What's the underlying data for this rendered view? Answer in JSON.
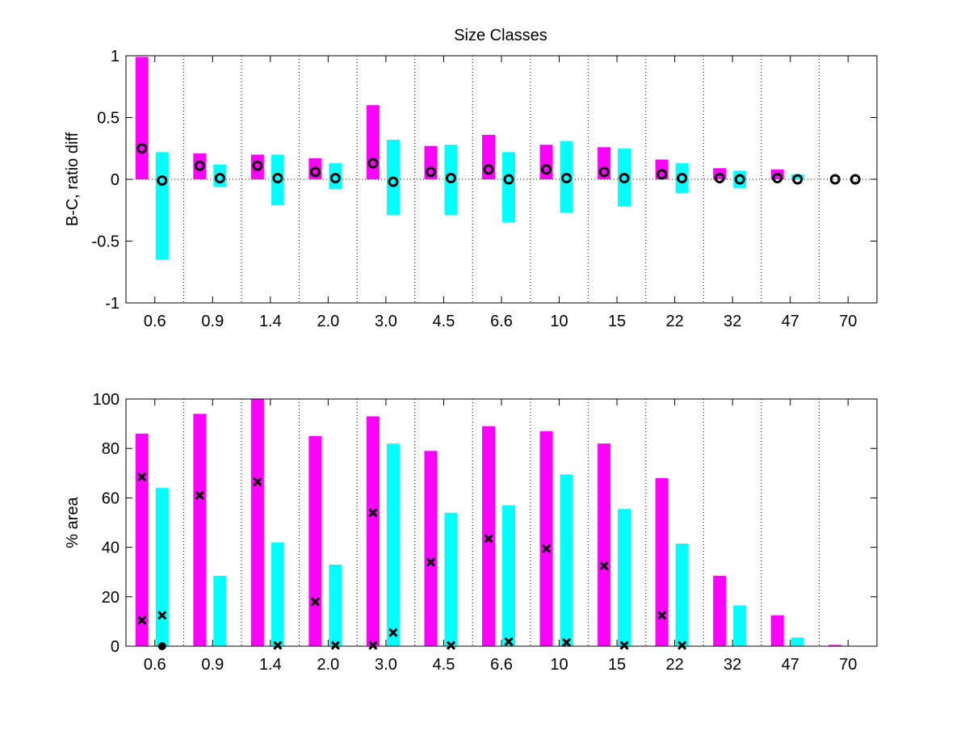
{
  "chart_data": [
    {
      "type": "bar",
      "title": "Size Classes",
      "xlabel": "",
      "ylabel": "B-C, ratio diff",
      "ylim": [
        -1,
        1
      ],
      "yticks": [
        "-1",
        "-0.5",
        "0",
        "0.5",
        "1"
      ],
      "ytick_values": [
        -1,
        -0.5,
        0,
        0.5,
        1
      ],
      "categories": [
        "0.6",
        "0.9",
        "1.4",
        "2.0",
        "3.0",
        "4.5",
        "6.6",
        "10",
        "15",
        "22",
        "32",
        "47",
        "70"
      ],
      "series": [
        {
          "name": "magenta range",
          "color": "#ff00ff",
          "low": [
            0,
            0,
            0,
            0,
            0,
            0,
            0,
            0,
            0,
            0,
            0,
            0,
            0
          ],
          "high": [
            0.99,
            0.21,
            0.2,
            0.17,
            0.6,
            0.27,
            0.36,
            0.28,
            0.26,
            0.16,
            0.09,
            0.08,
            0.0
          ]
        },
        {
          "name": "cyan range",
          "color": "#00ffff",
          "low": [
            -0.65,
            -0.06,
            -0.21,
            -0.08,
            -0.29,
            -0.29,
            -0.35,
            -0.27,
            -0.22,
            -0.11,
            -0.07,
            0.0,
            0.0
          ],
          "high": [
            0.22,
            0.12,
            0.2,
            0.13,
            0.32,
            0.28,
            0.22,
            0.31,
            0.25,
            0.13,
            0.07,
            0.04,
            0.0
          ]
        },
        {
          "name": "magenta mean",
          "marker": "circle",
          "values": [
            0.25,
            0.11,
            0.11,
            0.06,
            0.13,
            0.06,
            0.08,
            0.08,
            0.06,
            0.04,
            0.01,
            0.01,
            0.0
          ]
        },
        {
          "name": "cyan mean",
          "marker": "circle",
          "values": [
            -0.01,
            0.01,
            0.01,
            0.01,
            -0.02,
            0.01,
            0.0,
            0.01,
            0.01,
            0.01,
            0.0,
            0.0,
            0.0
          ]
        }
      ],
      "grid": "dotted vertical separators and zero line"
    },
    {
      "type": "bar",
      "title": "",
      "xlabel": "",
      "ylabel": "% area",
      "ylim": [
        0,
        100
      ],
      "yticks": [
        "0",
        "20",
        "40",
        "60",
        "80",
        "100"
      ],
      "ytick_values": [
        0,
        20,
        40,
        60,
        80,
        100
      ],
      "categories": [
        "0.6",
        "0.9",
        "1.4",
        "2.0",
        "3.0",
        "4.5",
        "6.6",
        "10",
        "15",
        "22",
        "32",
        "47",
        "70"
      ],
      "series": [
        {
          "name": "magenta",
          "color": "#ff00ff",
          "values": [
            86,
            94,
            100,
            85,
            93,
            79,
            89,
            87,
            82,
            68,
            28.5,
            12.5,
            0.5
          ]
        },
        {
          "name": "cyan",
          "color": "#00ffff",
          "values": [
            64,
            28.5,
            42,
            33,
            82,
            54,
            57,
            69.5,
            55.5,
            41.5,
            16.5,
            3.5,
            0
          ]
        },
        {
          "name": "magenta x markers",
          "marker": "x",
          "points": [
            [
              0,
              68.5
            ],
            [
              0,
              10.5
            ],
            [
              1,
              61
            ],
            [
              2,
              66.5
            ],
            [
              3,
              18
            ],
            [
              4,
              54
            ],
            [
              4,
              0.3
            ],
            [
              5,
              34
            ],
            [
              6,
              43.5
            ],
            [
              7,
              39.5
            ],
            [
              8,
              32.5
            ],
            [
              9,
              12.5
            ]
          ]
        },
        {
          "name": "cyan x markers",
          "marker": "x",
          "points": [
            [
              0,
              12.5
            ],
            [
              2,
              0.3
            ],
            [
              3,
              0.3
            ],
            [
              4,
              5.5
            ],
            [
              5,
              0.3
            ],
            [
              6,
              1.8
            ],
            [
              7,
              1.5
            ],
            [
              8,
              0.3
            ],
            [
              9,
              0.3
            ]
          ]
        },
        {
          "name": "cyan dot markers",
          "marker": "dot",
          "points": [
            [
              0,
              0
            ]
          ]
        }
      ]
    }
  ]
}
